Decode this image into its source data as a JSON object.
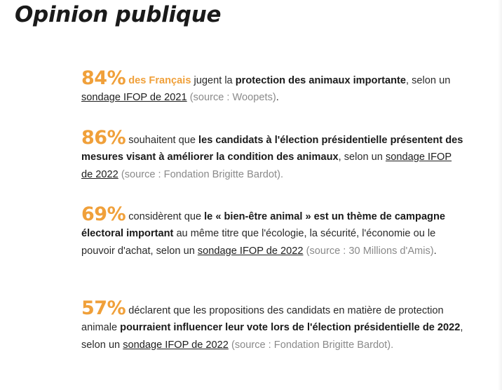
{
  "page": {
    "title": "Opinion publique"
  },
  "stats": [
    {
      "percent": "84%",
      "subject": "des Français",
      "t1": "jugent la",
      "bold": "protection des animaux importante",
      "t2": ", selon un",
      "link": "sondage IFOP de 2021",
      "source": "(source : Woopets)",
      "end": "."
    },
    {
      "percent": "86%",
      "t1": "souhaitent que",
      "bold": "les candidats à l'élection présidentielle présentent des mesures visant à améliorer la condition des animaux",
      "t2": ", selon un",
      "link": "sondage IFOP de 2022",
      "source": "(source : Fondation Brigitte Bardot).",
      "end": ""
    },
    {
      "percent": "69%",
      "t1": "considèrent que",
      "bold": "le « bien-être animal » est un thème de campagne électoral important",
      "t2": "au même titre que l'écologie, la sécurité, l'économie ou le pouvoir d'achat, selon un",
      "link": "sondage IFOP de 2022",
      "source": "(source : 30 Millions d'Amis)",
      "end": "."
    },
    {
      "percent": "57%",
      "t1": "déclarent que les propositions des candidats en matière de protection animale",
      "bold": "pourraient influencer leur vote lors de l'élection présidentielle de 2022",
      "t2": ", selon un",
      "link": "sondage IFOP de 2022",
      "source": "(source : Fondation Brigitte Bardot).",
      "end": ""
    }
  ]
}
